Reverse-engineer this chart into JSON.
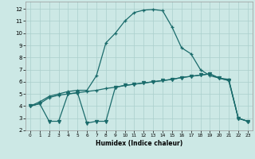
{
  "xlabel": "Humidex (Indice chaleur)",
  "background_color": "#cce8e5",
  "line_color": "#1a6b6b",
  "grid_color": "#aacfcc",
  "xlim": [
    -0.5,
    23.5
  ],
  "ylim": [
    2,
    12.6
  ],
  "yticks": [
    2,
    3,
    4,
    5,
    6,
    7,
    8,
    9,
    10,
    11,
    12
  ],
  "xticks": [
    0,
    1,
    2,
    3,
    4,
    5,
    6,
    7,
    8,
    9,
    10,
    11,
    12,
    13,
    14,
    15,
    16,
    17,
    18,
    19,
    20,
    21,
    22,
    23
  ],
  "curve1_x": [
    0,
    1,
    2,
    3,
    4,
    5,
    6,
    7,
    8,
    9,
    10,
    11,
    12,
    13,
    14,
    15,
    16,
    17,
    18,
    19,
    20,
    21,
    22,
    23
  ],
  "curve1_y": [
    4.0,
    4.35,
    4.8,
    5.0,
    5.2,
    5.3,
    5.3,
    6.5,
    9.2,
    10.0,
    11.0,
    11.7,
    11.9,
    11.95,
    11.85,
    10.5,
    8.8,
    8.3,
    7.0,
    6.5,
    6.3,
    6.2,
    3.0,
    2.75
  ],
  "curve2_x": [
    0,
    1,
    2,
    3,
    4,
    5,
    6,
    7,
    8,
    9,
    10,
    11,
    12,
    13,
    14,
    15,
    16,
    17,
    18,
    19,
    20,
    21,
    22,
    23
  ],
  "curve2_y": [
    4.0,
    4.2,
    4.7,
    4.9,
    5.0,
    5.1,
    5.2,
    5.3,
    5.45,
    5.55,
    5.7,
    5.8,
    5.9,
    6.0,
    6.1,
    6.2,
    6.35,
    6.45,
    6.55,
    6.65,
    6.3,
    6.1,
    3.0,
    2.75
  ],
  "curve3_x": [
    0,
    1,
    2,
    3,
    4,
    5,
    6,
    7,
    8,
    9,
    10,
    11,
    12,
    13,
    14,
    15,
    16,
    17,
    18,
    19,
    20,
    21,
    22,
    23
  ],
  "curve3_y": [
    4.0,
    4.2,
    2.75,
    2.75,
    5.0,
    5.1,
    2.6,
    2.75,
    2.75,
    5.55,
    5.7,
    5.8,
    5.9,
    6.0,
    6.1,
    6.2,
    6.35,
    6.45,
    6.55,
    6.65,
    6.3,
    6.1,
    3.0,
    2.75
  ]
}
